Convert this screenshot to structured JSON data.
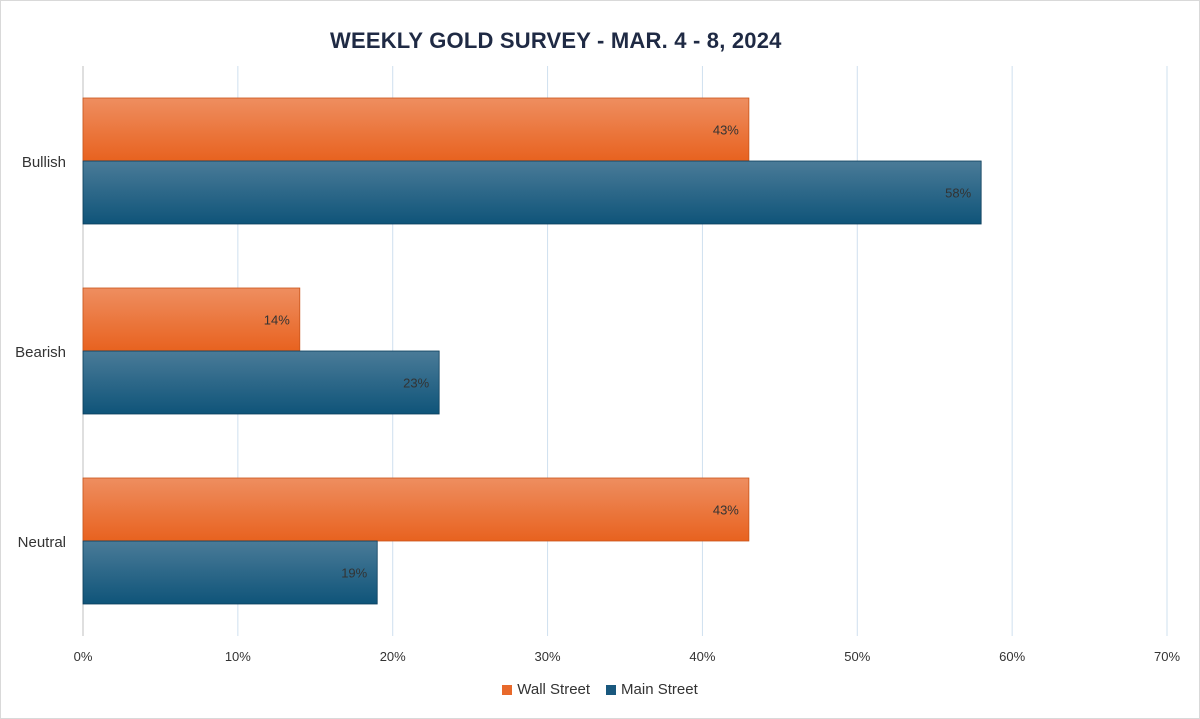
{
  "chart_data": {
    "type": "bar",
    "orientation": "horizontal",
    "title": "WEEKLY GOLD SURVEY - MAR. 4 - 8, 2024",
    "categories": [
      "Bullish",
      "Bearish",
      "Neutral"
    ],
    "series": [
      {
        "name": "Wall Street",
        "values": [
          43,
          14,
          43
        ],
        "color": "#e8692b"
      },
      {
        "name": "Main Street",
        "values": [
          58,
          23,
          19
        ],
        "color": "#19587e"
      }
    ],
    "data_labels": [
      [
        "43%",
        "14%",
        "43%"
      ],
      [
        "58%",
        "23%",
        "19%"
      ]
    ],
    "xlim": [
      0,
      70
    ],
    "xticks": [
      0,
      10,
      20,
      30,
      40,
      50,
      60,
      70
    ],
    "xtick_labels": [
      "0%",
      "10%",
      "20%",
      "30%",
      "40%",
      "50%",
      "60%",
      "70%"
    ],
    "grid": "vertical",
    "legend_position": "bottom"
  }
}
